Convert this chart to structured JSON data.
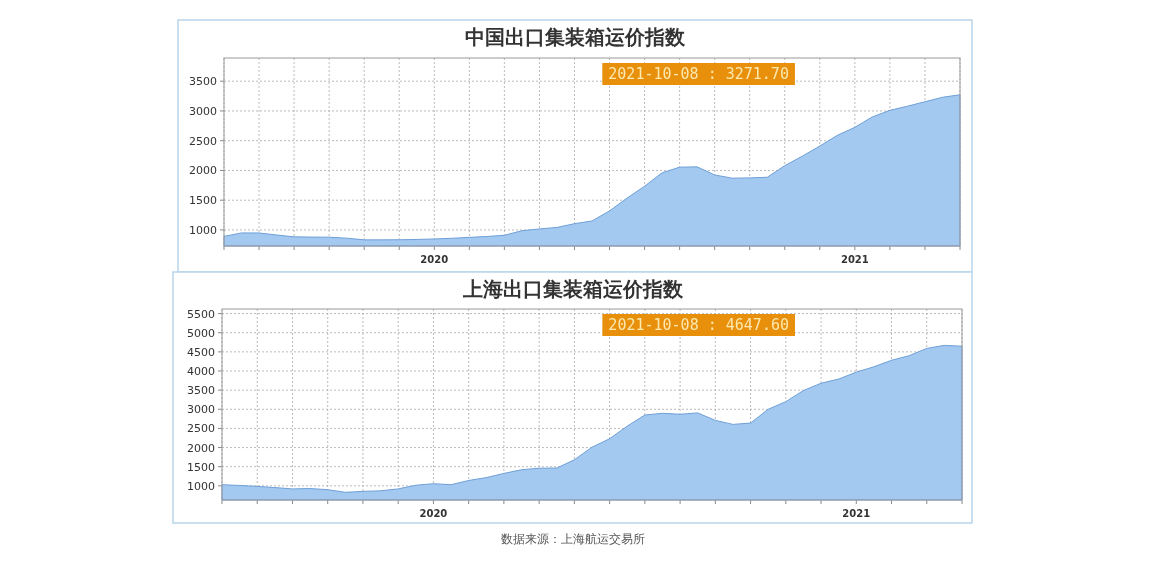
{
  "chart_data": [
    {
      "type": "area",
      "title": "中国出口集装箱运价指数",
      "color": "#a3c9f1",
      "ylim": [
        730,
        3890
      ],
      "yticks": [
        1000,
        1500,
        2000,
        2500,
        3000,
        3500
      ],
      "grid": true,
      "categories": [
        null,
        null,
        null,
        null,
        null,
        null,
        null,
        null,
        null,
        null,
        null,
        null,
        "2020",
        null,
        null,
        null,
        null,
        null,
        null,
        null,
        null,
        null,
        null,
        null,
        null,
        null,
        null,
        null,
        null,
        null,
        null,
        null,
        null,
        null,
        null,
        null,
        "2021",
        null,
        null,
        null,
        null,
        null,
        null
      ],
      "values": [
        891,
        950,
        949,
        915,
        884,
        880,
        878,
        862,
        833,
        833,
        835,
        840,
        848,
        860,
        875,
        890,
        910,
        987,
        1017,
        1042,
        1105,
        1150,
        1320,
        1535,
        1735,
        1960,
        2055,
        2060,
        1925,
        1870,
        1875,
        1885,
        2080,
        2240,
        2410,
        2590,
        2725,
        2900,
        3010,
        3080,
        3155,
        3230,
        3271.7
      ],
      "annotations": [
        "2021-10-08 : 3271.70"
      ]
    },
    {
      "type": "area",
      "title": "上海出口集装箱运价指数",
      "color": "#a3c9f1",
      "ylim": [
        630,
        5620
      ],
      "yticks": [
        1000,
        1500,
        2000,
        2500,
        3000,
        3500,
        4000,
        4500,
        5000,
        5500
      ],
      "grid": true,
      "categories": [
        null,
        null,
        null,
        null,
        null,
        null,
        null,
        null,
        null,
        null,
        null,
        null,
        "2020",
        null,
        null,
        null,
        null,
        null,
        null,
        null,
        null,
        null,
        null,
        null,
        null,
        null,
        null,
        null,
        null,
        null,
        null,
        null,
        null,
        null,
        null,
        null,
        "2021",
        null,
        null,
        null,
        null,
        null,
        null
      ],
      "values": [
        1030,
        1010,
        985,
        955,
        920,
        930,
        900,
        830,
        855,
        870,
        920,
        1015,
        1055,
        1030,
        1140,
        1215,
        1325,
        1420,
        1460,
        1465,
        1680,
        2010,
        2230,
        2560,
        2850,
        2895,
        2870,
        2905,
        2710,
        2605,
        2640,
        3000,
        3200,
        3490,
        3680,
        3790,
        3970,
        4110,
        4280,
        4400,
        4590,
        4670,
        4647.6
      ],
      "annotations": [
        "2021-10-08 : 4647.60",
        "数据来源：上海航运交易所"
      ]
    }
  ]
}
